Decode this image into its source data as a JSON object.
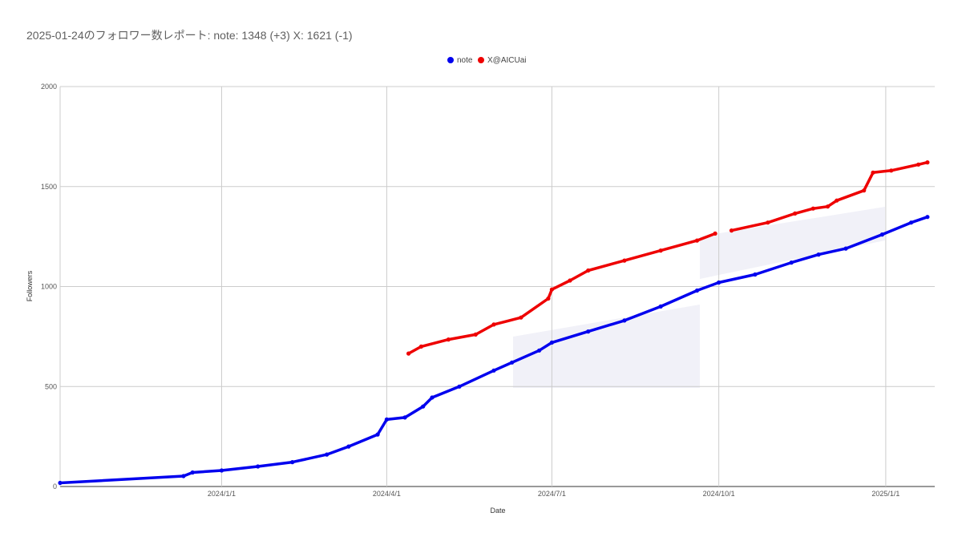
{
  "chart_data": {
    "type": "line",
    "title": "2025-01-24のフォロワー数レポート: note: 1348 (+3) X: 1621 (-1)",
    "xlabel": "Date",
    "ylabel": "Followers",
    "ylim": [
      0,
      2000
    ],
    "xlim": [
      "2023-10-04",
      "2025-01-28"
    ],
    "yticks": [
      {
        "value": 0,
        "label": "0"
      },
      {
        "value": 500,
        "label": "500"
      },
      {
        "value": 1000,
        "label": "1000"
      },
      {
        "value": 1500,
        "label": "1500"
      },
      {
        "value": 2000,
        "label": "2000"
      }
    ],
    "xticks": [
      {
        "date": "2024-01-01",
        "label": "2024/1/1"
      },
      {
        "date": "2024-04-01",
        "label": "2024/4/1"
      },
      {
        "date": "2024-07-01",
        "label": "2024/7/1"
      },
      {
        "date": "2024-10-01",
        "label": "2024/10/1"
      },
      {
        "date": "2025-01-01",
        "label": "2025/1/1"
      }
    ],
    "grid": true,
    "legend": "top-center",
    "series": [
      {
        "name": "note",
        "color": "#0000ee",
        "points": [
          [
            "2023-10-04",
            18
          ],
          [
            "2023-12-11",
            52
          ],
          [
            "2023-12-16",
            70
          ],
          [
            "2024-01-01",
            80
          ],
          [
            "2024-01-21",
            100
          ],
          [
            "2024-02-09",
            122
          ],
          [
            "2024-02-28",
            160
          ],
          [
            "2024-03-11",
            200
          ],
          [
            "2024-03-27",
            260
          ],
          [
            "2024-04-01",
            335
          ],
          [
            "2024-04-11",
            345
          ],
          [
            "2024-04-21",
            400
          ],
          [
            "2024-04-26",
            445
          ],
          [
            "2024-05-11",
            500
          ],
          [
            "2024-05-30",
            580
          ],
          [
            "2024-06-09",
            620
          ],
          [
            "2024-06-24",
            680
          ],
          [
            "2024-07-01",
            720
          ],
          [
            "2024-07-21",
            775
          ],
          [
            "2024-08-10",
            830
          ],
          [
            "2024-08-30",
            900
          ],
          [
            "2024-09-19",
            980
          ],
          [
            "2024-10-01",
            1020
          ],
          [
            "2024-10-21",
            1060
          ],
          [
            "2024-11-10",
            1120
          ],
          [
            "2024-11-25",
            1160
          ],
          [
            "2024-12-10",
            1190
          ],
          [
            "2024-12-30",
            1260
          ],
          [
            "2025-01-15",
            1320
          ],
          [
            "2025-01-24",
            1348
          ]
        ]
      },
      {
        "name": "X@AICUai",
        "color": "#ee0000",
        "segments": [
          [
            [
              "2024-04-13",
              665
            ],
            [
              "2024-04-20",
              700
            ],
            [
              "2024-05-05",
              735
            ],
            [
              "2024-05-20",
              760
            ],
            [
              "2024-05-30",
              810
            ],
            [
              "2024-06-14",
              845
            ],
            [
              "2024-06-29",
              940
            ],
            [
              "2024-07-01",
              985
            ],
            [
              "2024-07-11",
              1030
            ],
            [
              "2024-07-21",
              1080
            ],
            [
              "2024-08-10",
              1130
            ],
            [
              "2024-08-30",
              1180
            ],
            [
              "2024-09-19",
              1230
            ],
            [
              "2024-09-29",
              1265
            ]
          ],
          [
            [
              "2024-10-08",
              1280
            ],
            [
              "2024-10-28",
              1320
            ],
            [
              "2024-11-12",
              1365
            ],
            [
              "2024-11-22",
              1390
            ],
            [
              "2024-11-30",
              1400
            ],
            [
              "2024-12-05",
              1430
            ],
            [
              "2024-12-20",
              1480
            ],
            [
              "2024-12-25",
              1570
            ],
            [
              "2025-01-04",
              1580
            ],
            [
              "2025-01-19",
              1610
            ],
            [
              "2025-01-24",
              1621
            ]
          ]
        ]
      }
    ]
  }
}
